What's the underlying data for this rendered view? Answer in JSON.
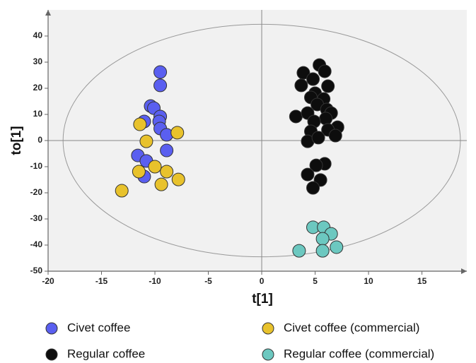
{
  "chart_data": {
    "type": "scatter",
    "x_label": "t[1]",
    "y_label": "to[1]",
    "xlim": [
      -20,
      19.2
    ],
    "ylim": [
      -50,
      50
    ],
    "xticks": [
      -20,
      -15,
      -10,
      -5,
      0,
      5,
      10,
      15
    ],
    "yticks": [
      -50,
      -40,
      -30,
      -20,
      -10,
      0,
      10,
      20,
      30,
      40
    ],
    "ellipse_radii": [
      18.6,
      44.5
    ],
    "legend": "bottom",
    "series": [
      {
        "name": "Civet coffee",
        "color": "#5a5ff0",
        "x": [
          -9.5,
          -9.5,
          -10.4,
          -10.1,
          -9.5,
          -11.0,
          -9.6,
          -9.5,
          -8.9,
          -8.9,
          -11.6,
          -10.8,
          -11.0
        ],
        "values": [
          26.2,
          21.1,
          13.2,
          12.4,
          9.2,
          7.3,
          7.3,
          4.6,
          2.2,
          -3.8,
          -5.7,
          -7.8,
          -13.8
        ]
      },
      {
        "name": "Civet coffee (commercial)",
        "color": "#e8c22c",
        "x": [
          -11.4,
          -10.8,
          -7.9,
          -10.0,
          -11.5,
          -8.9,
          -7.8,
          -9.4,
          -13.1
        ],
        "values": [
          6.2,
          -0.3,
          3.0,
          -10.0,
          -11.9,
          -11.9,
          -14.9,
          -16.8,
          -19.2
        ]
      },
      {
        "name": "Regular coffee",
        "color": "#0d0d0d",
        "x": [
          5.4,
          3.9,
          5.9,
          4.8,
          3.7,
          6.2,
          5.0,
          4.6,
          5.8,
          5.2,
          3.2,
          4.3,
          6.1,
          6.5,
          6.0,
          4.9,
          7.1,
          4.6,
          6.2,
          6.9,
          4.3,
          5.3,
          5.9,
          5.1,
          4.3,
          5.5,
          4.8
        ],
        "values": [
          28.9,
          25.9,
          26.5,
          23.5,
          21.1,
          20.8,
          18.1,
          16.5,
          15.9,
          13.8,
          9.2,
          10.5,
          11.9,
          10.5,
          8.4,
          7.3,
          5.1,
          3.5,
          4.1,
          1.9,
          -0.3,
          1.1,
          -8.9,
          -9.5,
          -13.0,
          -15.1,
          -18.1
        ]
      },
      {
        "name": "Regular coffee (commercial)",
        "color": "#6cc8c0",
        "x": [
          4.8,
          5.8,
          6.5,
          5.7,
          7.0,
          3.5,
          5.7
        ],
        "values": [
          -33.2,
          -33.2,
          -35.7,
          -37.6,
          -40.8,
          -42.2,
          -42.2
        ]
      }
    ]
  }
}
